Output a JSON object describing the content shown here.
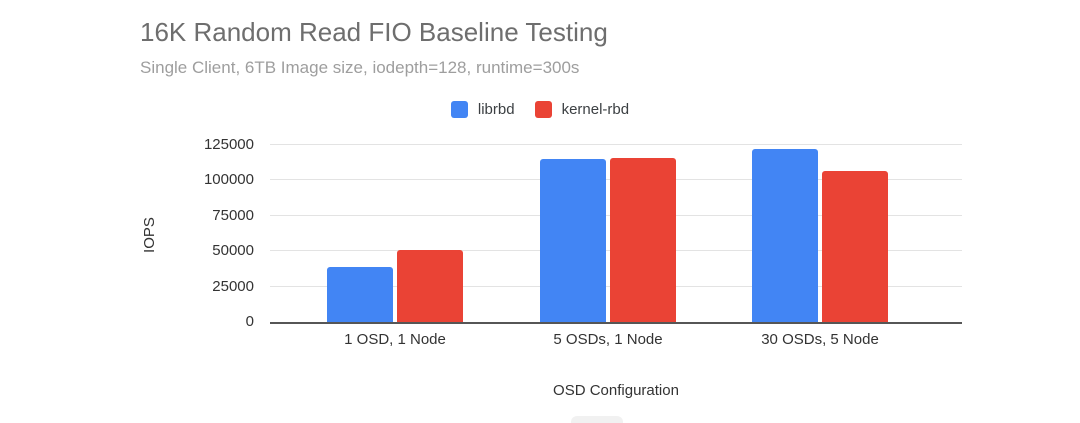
{
  "chart_data": {
    "type": "bar",
    "title": "16K Random Read FIO Baseline Testing",
    "subtitle": "Single Client, 6TB Image size, iodepth=128, runtime=300s",
    "categories": [
      "1 OSD, 1 Node",
      "5 OSDs, 1 Node",
      "30 OSDs, 5 Node"
    ],
    "series": [
      {
        "name": "librbd",
        "color": "#4285F4",
        "values": [
          39000,
          115000,
          122000
        ]
      },
      {
        "name": "kernel-rbd",
        "color": "#EA4335",
        "values": [
          51000,
          116000,
          107000
        ]
      }
    ],
    "xlabel": "OSD Configuration",
    "ylabel": "IOPS",
    "ylim": [
      0,
      125000
    ],
    "yticks": [
      0,
      25000,
      50000,
      75000,
      100000,
      125000
    ],
    "grid": true,
    "legend_position": "top"
  }
}
